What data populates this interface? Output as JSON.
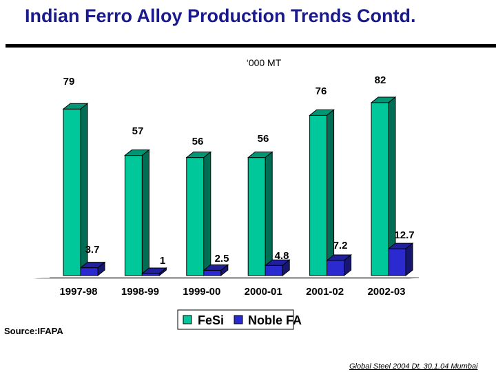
{
  "slide": {
    "title": "Indian Ferro Alloy Production Trends Contd.",
    "source": "Source:IFAPA",
    "footer": "Global Steel 2004 Dt. 30.1.04 Mumbai"
  },
  "chart_data": {
    "type": "bar",
    "subtitle": "‘000 MT",
    "categories": [
      "1997-98",
      "1998-99",
      "1999-00",
      "2000-01",
      "2001-02",
      "2002-03"
    ],
    "series": [
      {
        "name": "FeSi",
        "values": [
          79,
          57,
          56,
          56,
          76,
          82
        ],
        "labels": [
          "79",
          "57",
          "56",
          "56",
          "76",
          "82"
        ],
        "color": "#00c89a"
      },
      {
        "name": "Noble FA",
        "values": [
          3.7,
          1,
          2.5,
          4.8,
          7.2,
          12.7
        ],
        "labels": [
          "3.7",
          "1",
          "2.5",
          "4.8",
          "7.2",
          "12.7"
        ],
        "color": "#2a2ad0"
      }
    ],
    "ylim": [
      0,
      90
    ],
    "grid": false,
    "legend_position": "bottom-center"
  }
}
